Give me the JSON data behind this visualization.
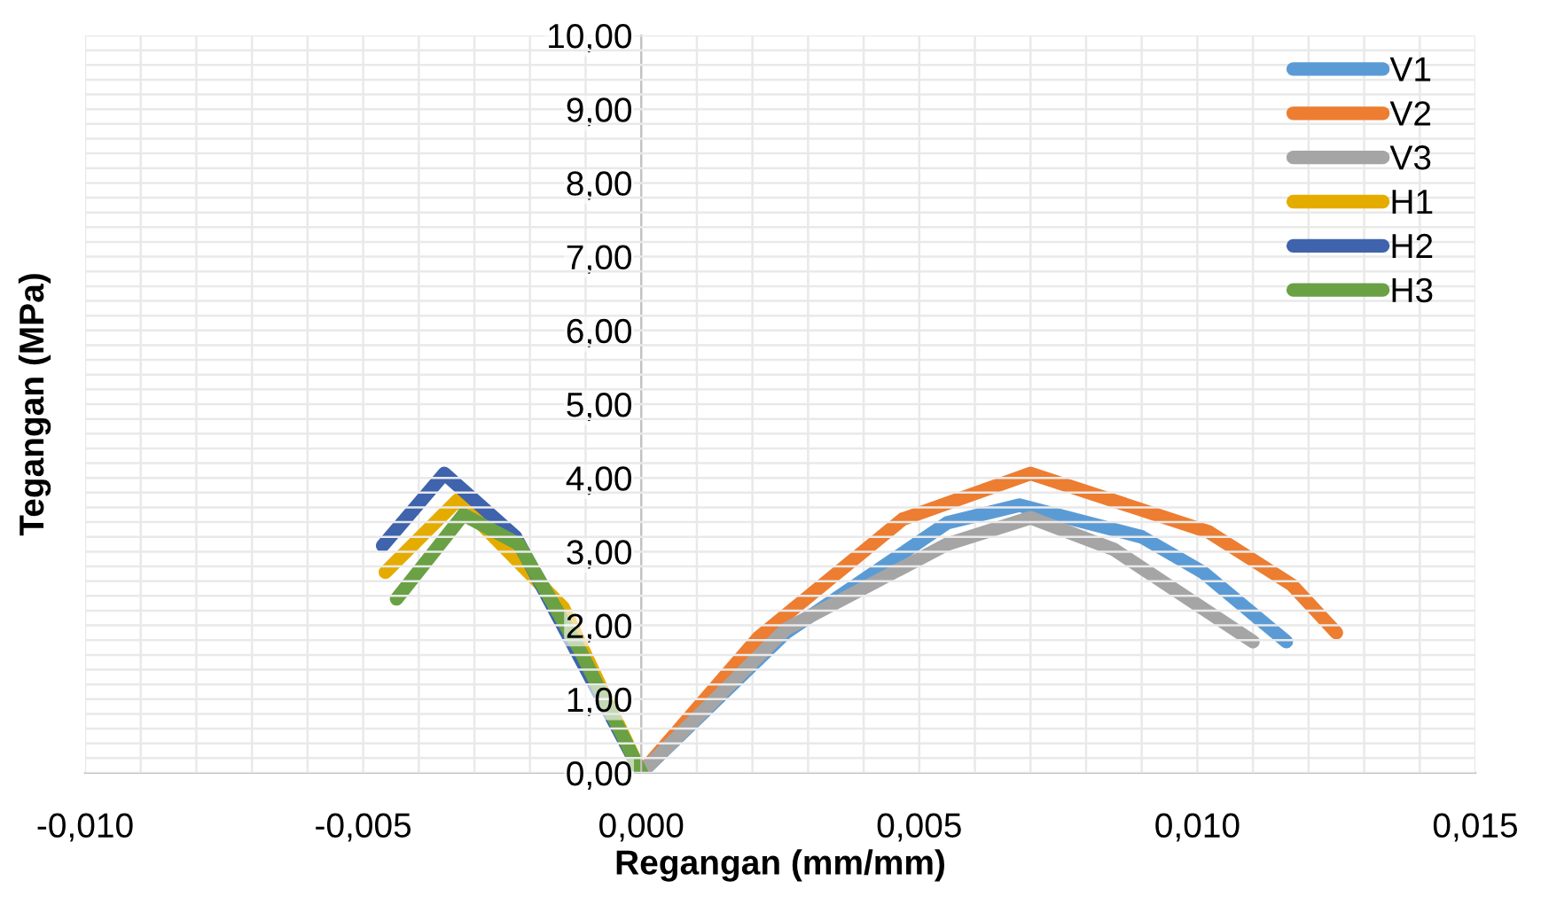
{
  "chart_data": {
    "type": "line",
    "xlabel": "Regangan (mm/mm)",
    "ylabel": "Tegangan (MPa)",
    "xlim": [
      -0.01,
      0.015
    ],
    "ylim": [
      0,
      10
    ],
    "xticks": [
      {
        "value": -0.01,
        "label": "-0,010"
      },
      {
        "value": -0.005,
        "label": "-0,005"
      },
      {
        "value": 0.0,
        "label": "0,000"
      },
      {
        "value": 0.005,
        "label": "0,005"
      },
      {
        "value": 0.01,
        "label": "0,010"
      },
      {
        "value": 0.015,
        "label": "0,015"
      }
    ],
    "yticks": [
      {
        "value": 0,
        "label": "0,00"
      },
      {
        "value": 1,
        "label": "1,00"
      },
      {
        "value": 2,
        "label": "2,00"
      },
      {
        "value": 3,
        "label": "3,00"
      },
      {
        "value": 4,
        "label": "4,00"
      },
      {
        "value": 5,
        "label": "5,00"
      },
      {
        "value": 6,
        "label": "6,00"
      },
      {
        "value": 7,
        "label": "7,00"
      },
      {
        "value": 8,
        "label": "8,00"
      },
      {
        "value": 9,
        "label": "9,00"
      },
      {
        "value": 10,
        "label": "10,00"
      }
    ],
    "grid": true,
    "legend": "top right",
    "marker": "none",
    "line_style": "solid",
    "series": [
      {
        "name": "V1",
        "color": "#5b9bd5",
        "x": [
          0.0,
          0.0026,
          0.0055,
          0.0068,
          0.009,
          0.0101,
          0.0116
        ],
        "values": [
          0.0,
          1.9,
          3.39,
          3.63,
          3.2,
          2.72,
          1.78
        ]
      },
      {
        "name": "V2",
        "color": "#ed7d31",
        "x": [
          0.0,
          0.0021,
          0.0047,
          0.007,
          0.0102,
          0.0117,
          0.0125
        ],
        "values": [
          0.0,
          1.83,
          3.44,
          4.06,
          3.27,
          2.55,
          1.9
        ]
      },
      {
        "name": "V3",
        "color": "#a5a5a5",
        "x": [
          0.0,
          0.0026,
          0.0055,
          0.007,
          0.0085,
          0.011
        ],
        "values": [
          0.0,
          1.95,
          3.1,
          3.46,
          3.03,
          1.78
        ]
      },
      {
        "name": "H1",
        "color": "#e5ac00",
        "x": [
          -0.0046,
          -0.0033,
          -0.0014,
          0.0
        ],
        "values": [
          2.72,
          3.7,
          2.24,
          0.0
        ]
      },
      {
        "name": "H2",
        "color": "#3f63ad",
        "x": [
          -0.00465,
          -0.00354,
          -0.00226,
          0.0
        ],
        "values": [
          3.08,
          4.06,
          3.2,
          0.0
        ]
      },
      {
        "name": "H3",
        "color": "#6aa144",
        "x": [
          -0.0044,
          -0.0032,
          -0.0022,
          -0.0011,
          0.0
        ],
        "values": [
          2.36,
          3.5,
          3.1,
          1.66,
          0.0
        ]
      }
    ]
  }
}
